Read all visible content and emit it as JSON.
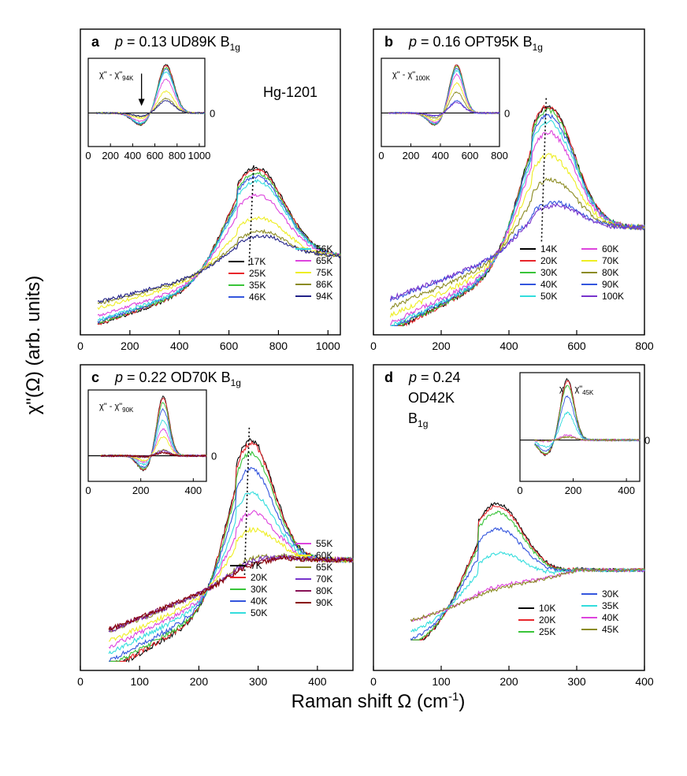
{
  "figure": {
    "ylabel": "χ\"(Ω) (arb. units)",
    "xlabel": "Raman shift Ω (cm",
    "xlabel_sup": "-1",
    "xlabel_end": ")"
  },
  "chart_data": [
    {
      "type": "line",
      "panel": "a",
      "title": "p = 0.13  UD89K   B1g",
      "title_letter": "a",
      "title_p": "p",
      "title_rest": " = 0.13  UD89K    B",
      "title_sub": "1g",
      "note": "Hg-1201",
      "xlim": [
        0,
        1050
      ],
      "xticks": [
        "0",
        "200",
        "400",
        "600",
        "800",
        "1000"
      ],
      "x_start": 70,
      "peak": 700,
      "width": 170,
      "left_slope": 0.35,
      "series": [
        {
          "name": "17K",
          "color": "#000000",
          "amp": 1.0
        },
        {
          "name": "25K",
          "color": "#e8262b",
          "amp": 0.98
        },
        {
          "name": "35K",
          "color": "#39c439",
          "amp": 0.94
        },
        {
          "name": "46K",
          "color": "#3355dd",
          "amp": 0.9
        },
        {
          "name": "56K",
          "color": "#33dddd",
          "amp": 0.85
        },
        {
          "name": "65K",
          "color": "#dd44dd",
          "amp": 0.7
        },
        {
          "name": "75K",
          "color": "#eeee22",
          "amp": 0.45
        },
        {
          "name": "86K",
          "color": "#8b8b22",
          "amp": 0.3
        },
        {
          "name": "94K",
          "color": "#222288",
          "amp": 0.25
        }
      ],
      "inset": {
        "label_prefix": "χ\" - χ\"",
        "label_sub": "94K",
        "xlim": [
          0,
          1050
        ],
        "xticks": [
          "0",
          "200",
          "400",
          "600",
          "800",
          "1000"
        ],
        "zero_label": "0"
      }
    },
    {
      "type": "line",
      "panel": "b",
      "title": "p = 0.16  OPT95K   B1g",
      "title_letter": "b",
      "title_p": "p",
      "title_rest": " = 0.16  OPT95K    B",
      "title_sub": "1g",
      "xlim": [
        0,
        800
      ],
      "xticks": [
        "0",
        "200",
        "400",
        "600",
        "800"
      ],
      "x_start": 50,
      "peak": 510,
      "width": 110,
      "left_slope": 0.25,
      "series": [
        {
          "name": "14K",
          "color": "#000000",
          "amp": 1.0
        },
        {
          "name": "20K",
          "color": "#e8262b",
          "amp": 1.0
        },
        {
          "name": "30K",
          "color": "#39c439",
          "amp": 0.97
        },
        {
          "name": "40K",
          "color": "#3355dd",
          "amp": 0.93
        },
        {
          "name": "50K",
          "color": "#33dddd",
          "amp": 0.88
        },
        {
          "name": "60K",
          "color": "#dd44dd",
          "amp": 0.8
        },
        {
          "name": "70K",
          "color": "#eeee22",
          "amp": 0.62
        },
        {
          "name": "80K",
          "color": "#8b8b22",
          "amp": 0.43
        },
        {
          "name": "90K",
          "color": "#3355dd",
          "amp": 0.25
        },
        {
          "name": "100K",
          "color": "#7733cc",
          "amp": 0.22
        }
      ],
      "inset": {
        "label_prefix": "χ\" - χ\"",
        "label_sub": "100K",
        "xlim": [
          0,
          800
        ],
        "xticks": [
          "0",
          "200",
          "400",
          "600",
          "800"
        ],
        "zero_label": "0"
      }
    },
    {
      "type": "line",
      "panel": "c",
      "title": "p = 0.22  OD70K   B1g",
      "title_letter": "c",
      "title_p": "p",
      "title_rest": " = 0.22  OD70K    B",
      "title_sub": "1g",
      "xlim": [
        0,
        460
      ],
      "xticks": [
        "0",
        "100",
        "200",
        "300",
        "400"
      ],
      "x_start": 48,
      "peak": 285,
      "width": 55,
      "left_slope": 0.2,
      "series": [
        {
          "name": "7K",
          "color": "#000000",
          "amp": 1.0
        },
        {
          "name": "20K",
          "color": "#e8262b",
          "amp": 0.97
        },
        {
          "name": "30K",
          "color": "#39c439",
          "amp": 0.9
        },
        {
          "name": "40K",
          "color": "#3355dd",
          "amp": 0.78
        },
        {
          "name": "50K",
          "color": "#33dddd",
          "amp": 0.6
        },
        {
          "name": "55K",
          "color": "#dd44dd",
          "amp": 0.45
        },
        {
          "name": "60K",
          "color": "#eeee22",
          "amp": 0.32
        },
        {
          "name": "65K",
          "color": "#8b8b22",
          "amp": 0.1
        },
        {
          "name": "70K",
          "color": "#7733cc",
          "amp": 0.08
        },
        {
          "name": "80K",
          "color": "#881155",
          "amp": 0.06
        },
        {
          "name": "90K",
          "color": "#880000",
          "amp": 0.05
        }
      ],
      "inset": {
        "label_prefix": "χ\" - χ\"",
        "label_sub": "90K",
        "xlim": [
          0,
          450
        ],
        "xticks": [
          "0",
          "200",
          "400"
        ],
        "zero_label": "0"
      }
    },
    {
      "type": "line",
      "panel": "d",
      "title": "p = 0.24  OD42K  B1g",
      "title_letter": "d",
      "title_p": "p",
      "title_rest": " = 0.24",
      "title_line2": "OD42K",
      "title_line3": "B",
      "title_sub": "1g",
      "xlim": [
        0,
        400
      ],
      "xticks": [
        "0",
        "100",
        "200",
        "300",
        "400"
      ],
      "x_start": 55,
      "peak": 178,
      "width": 60,
      "left_slope": 0.15,
      "series": [
        {
          "name": "10K",
          "color": "#000000",
          "amp": 1.0
        },
        {
          "name": "20K",
          "color": "#e8262b",
          "amp": 0.97
        },
        {
          "name": "25K",
          "color": "#39c439",
          "amp": 0.9
        },
        {
          "name": "30K",
          "color": "#3355dd",
          "amp": 0.72
        },
        {
          "name": "35K",
          "color": "#33dddd",
          "amp": 0.45
        },
        {
          "name": "40K",
          "color": "#dd44dd",
          "amp": 0.08
        },
        {
          "name": "45K",
          "color": "#8b8b22",
          "amp": 0.05
        }
      ],
      "inset": {
        "label_prefix": "χ\" - χ\"",
        "label_sub": "45K",
        "xlim": [
          0,
          450
        ],
        "xticks": [
          "0",
          "200",
          "400"
        ],
        "zero_label": "0"
      }
    }
  ]
}
